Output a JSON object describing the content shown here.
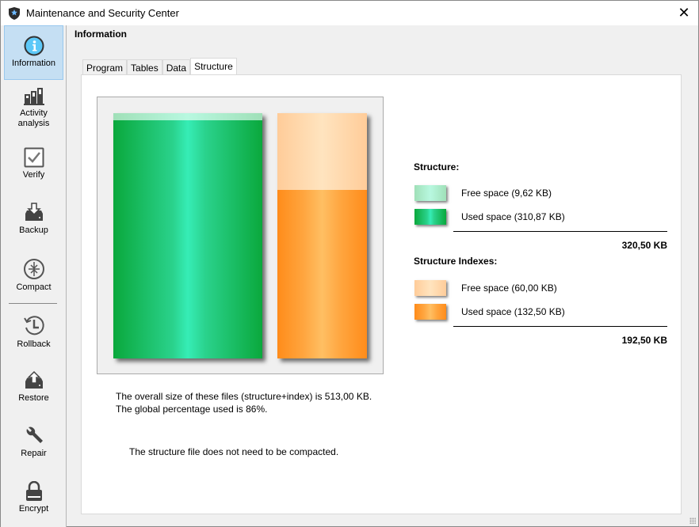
{
  "window": {
    "title": "Maintenance and Security Center",
    "close_label": "✕"
  },
  "sidebar": {
    "items": [
      {
        "label": "Information",
        "icon": "info-icon",
        "active": true
      },
      {
        "label": "Activity analysis",
        "icon": "bar-chart-icon"
      },
      {
        "label": "Verify",
        "icon": "checkbox-icon"
      },
      {
        "label": "Backup",
        "icon": "backup-drive-icon"
      },
      {
        "label": "Compact",
        "icon": "compact-icon"
      },
      {
        "label": "Rollback",
        "icon": "history-icon"
      },
      {
        "label": "Restore",
        "icon": "restore-drive-icon"
      },
      {
        "label": "Repair",
        "icon": "wrench-icon"
      },
      {
        "label": "Encrypt",
        "icon": "lock-icon"
      }
    ]
  },
  "main": {
    "heading": "Information",
    "tabs": [
      {
        "label": "Program"
      },
      {
        "label": "Tables"
      },
      {
        "label": "Data"
      },
      {
        "label": "Structure",
        "active": true
      }
    ]
  },
  "chart_data": {
    "type": "bar",
    "stacked": true,
    "categories": [
      "Structure",
      "Structure Indexes"
    ],
    "series": [
      {
        "name": "Free space",
        "values": [
          9.62,
          60.0
        ]
      },
      {
        "name": "Used space",
        "values": [
          310.87,
          132.5
        ]
      }
    ],
    "totals": [
      320.5,
      192.5
    ],
    "colors": {
      "structure_used": "#1fc46a",
      "structure_free": "#aeeed0",
      "index_used": "#ffa640",
      "index_free": "#ffd8aa"
    }
  },
  "legend": {
    "structure": {
      "title": "Structure:",
      "free": "Free space (9,62 KB)",
      "used": "Used space (310,87 KB)",
      "total": "320,50 KB"
    },
    "indexes": {
      "title": "Structure Indexes:",
      "free": "Free space (60,00 KB)",
      "used": "Used space (132,50 KB)",
      "total": "192,50 KB"
    }
  },
  "info": {
    "line1": "The overall size of these files (structure+index) is 513,00 KB.",
    "line2": "The global percentage used is 86%.",
    "line3": "The structure file does not need to be compacted."
  }
}
